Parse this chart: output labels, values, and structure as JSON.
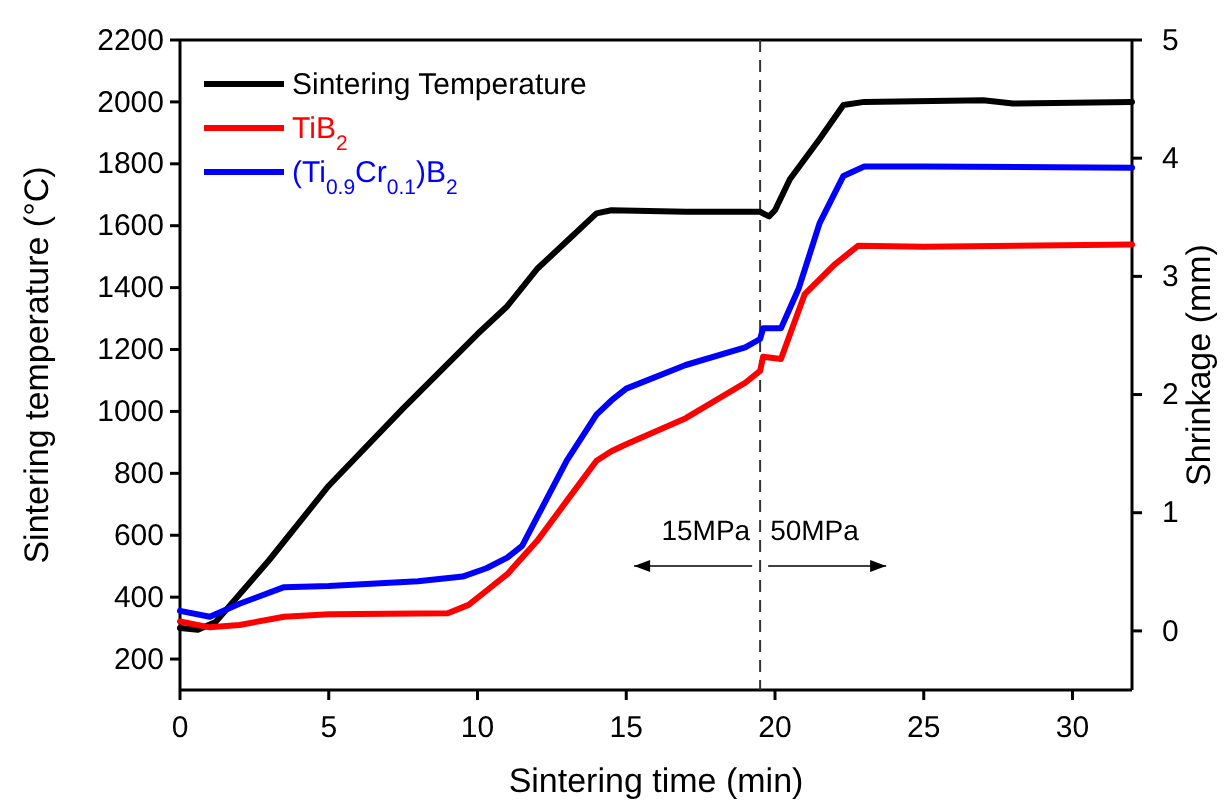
{
  "chart_data": {
    "type": "line",
    "xlabel": "Sintering time (min)",
    "ylabel": "Sintering temperature (°C)",
    "y2label": "Shrinkage (mm)",
    "xlim": [
      0,
      32
    ],
    "xticks": [
      0,
      5,
      10,
      15,
      20,
      25,
      30
    ],
    "ylim": [
      100,
      2200
    ],
    "yticks": [
      200,
      400,
      600,
      800,
      1000,
      1200,
      1400,
      1600,
      1800,
      2000,
      2200
    ],
    "y2lim": [
      -0.5,
      5
    ],
    "y2ticks": [
      0,
      1,
      2,
      3,
      4,
      5
    ],
    "grid": false,
    "legend": "top left",
    "line_style": "solid",
    "marker": "none",
    "series": [
      {
        "name": "Sintering Temperature",
        "color": "#000000",
        "x": [
          0,
          0.6,
          1.2,
          3,
          5,
          7.5,
          10,
          11,
          12,
          13,
          14,
          14.5,
          17,
          19.5,
          19.8,
          20,
          20.5,
          21.5,
          22.3,
          23,
          27,
          28,
          32
        ],
        "values": [
          300,
          295,
          320,
          520,
          760,
          1010,
          1250,
          1340,
          1460,
          1550,
          1640,
          1650,
          1645,
          1645,
          1630,
          1650,
          1750,
          1880,
          1990,
          2000,
          2005,
          1995,
          2000
        ]
      },
      {
        "name": "TiB$_{2}$",
        "color": "#ff0000",
        "axis": "y2",
        "x": [
          0,
          1,
          2,
          3.5,
          5,
          9,
          9.7,
          10.3,
          11,
          12,
          13,
          14,
          14.5,
          15,
          17,
          19,
          19.5,
          19.6,
          20.2,
          21,
          22,
          22.8,
          25,
          32
        ],
        "values": [
          0.08,
          0.03,
          0.05,
          0.12,
          0.14,
          0.15,
          0.22,
          0.34,
          0.48,
          0.76,
          1.1,
          1.44,
          1.52,
          1.58,
          1.8,
          2.1,
          2.2,
          2.32,
          2.3,
          2.85,
          3.1,
          3.26,
          3.25,
          3.27
        ]
      },
      {
        "name": "(Ti$_{0.9}$Cr$_{0.1}$)B$_{2}$",
        "color": "#0000ff",
        "axis": "y2",
        "x": [
          0,
          1,
          2,
          3.5,
          5,
          8,
          9.5,
          10.3,
          11,
          11.5,
          12,
          13,
          14,
          14.5,
          15,
          17,
          19,
          19.5,
          19.6,
          20.2,
          20.8,
          21.5,
          22.3,
          23,
          25,
          32
        ],
        "values": [
          0.17,
          0.12,
          0.23,
          0.37,
          0.38,
          0.42,
          0.46,
          0.53,
          0.62,
          0.72,
          0.96,
          1.44,
          1.83,
          1.95,
          2.05,
          2.25,
          2.4,
          2.47,
          2.56,
          2.56,
          2.9,
          3.45,
          3.85,
          3.93,
          3.93,
          3.92
        ]
      }
    ],
    "ref_lines": [
      {
        "axis": "x",
        "value": 19.5,
        "line_style": "dashed",
        "color": "#333333"
      }
    ],
    "annotations": [
      "15MPa",
      "50MPa"
    ]
  }
}
